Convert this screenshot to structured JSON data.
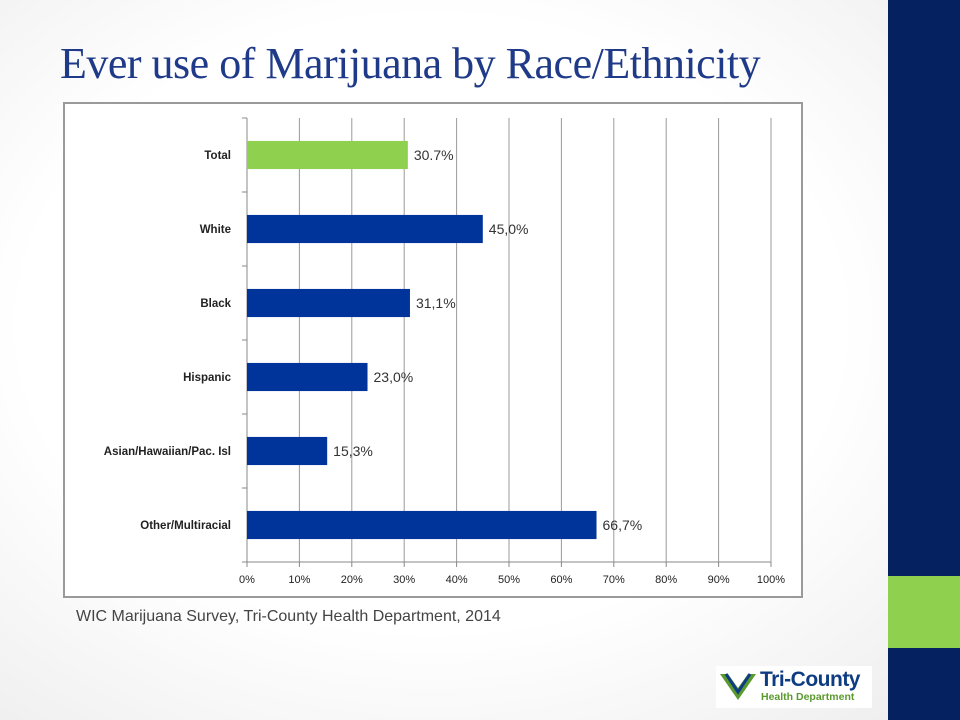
{
  "slide": {
    "title": "Ever use of Marijuana by Race/Ethnicity",
    "source": "WIC Marijuana Survey, Tri-County Health Department, 2014",
    "colors": {
      "accent_dark": "#06215f",
      "accent_green": "#8fd14f",
      "title": "#1f3a88"
    }
  },
  "logo": {
    "name": "Tri-County",
    "subtitle": "Health Department"
  },
  "chart_data": {
    "type": "bar",
    "orientation": "horizontal",
    "categories": [
      "Total",
      "White",
      "Black",
      "Hispanic",
      "Asian/Hawaiian/Pac. Isl",
      "Other/Multiracial"
    ],
    "values": [
      30.7,
      45.0,
      31.1,
      23.0,
      15.3,
      66.7
    ],
    "data_labels": [
      "30.7%",
      "45,0%",
      "31,1%",
      "23,0%",
      "15,3%",
      "66,7%"
    ],
    "bar_colors": [
      "#8fd14f",
      "#00349b",
      "#00349b",
      "#00349b",
      "#00349b",
      "#00349b"
    ],
    "xlim": [
      0,
      100
    ],
    "x_ticks": [
      "0%",
      "10%",
      "20%",
      "30%",
      "40%",
      "50%",
      "60%",
      "70%",
      "80%",
      "90%",
      "100%"
    ],
    "grid": true,
    "legend": "none"
  }
}
